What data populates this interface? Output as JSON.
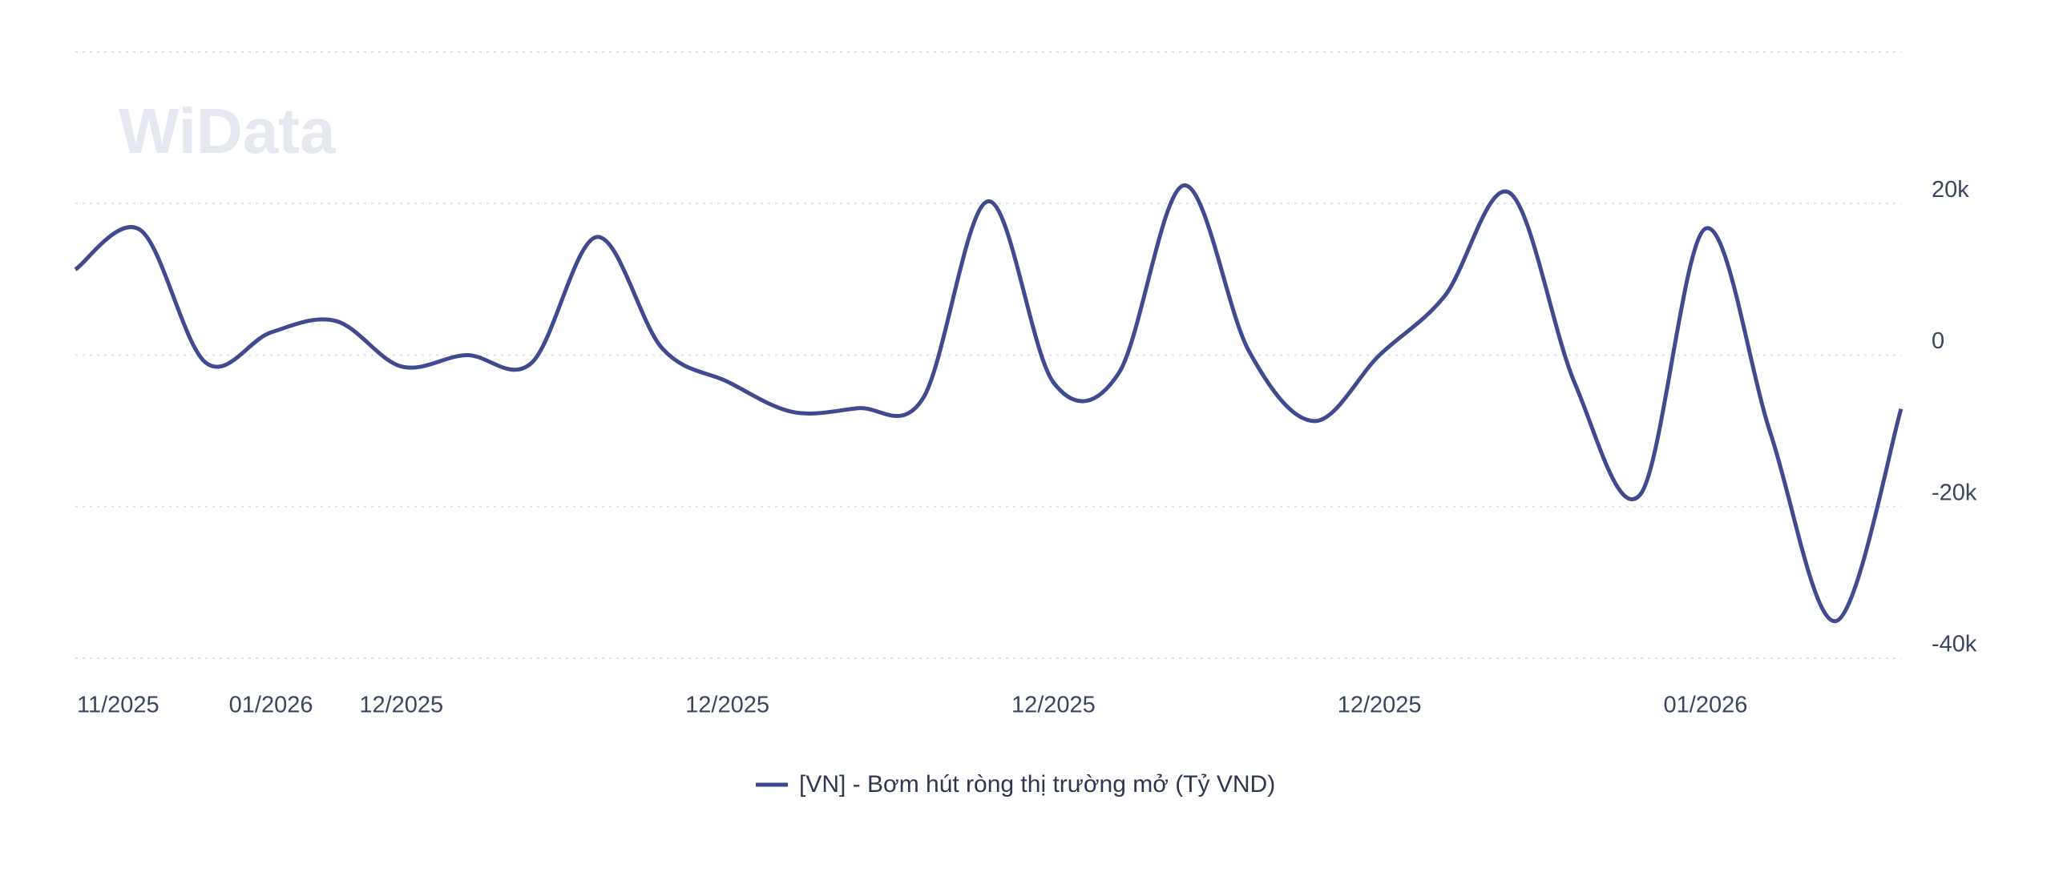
{
  "chart_data": {
    "type": "line",
    "watermark": "WiData",
    "categories": [
      "11/2025",
      null,
      null,
      "01/2026",
      null,
      "12/2025",
      null,
      null,
      null,
      null,
      "12/2025",
      null,
      null,
      null,
      null,
      "12/2025",
      null,
      null,
      null,
      null,
      "12/2025",
      null,
      null,
      null,
      null,
      "01/2026",
      null,
      null,
      null
    ],
    "series": [
      {
        "name": "[VN] - Bơm hút ròng thị trường mở (Tỷ VND)",
        "color": "#3f4a8f",
        "values": [
          11300,
          16500,
          -1000,
          3000,
          4500,
          -1500,
          0,
          -1000,
          15600,
          900,
          -3500,
          -7500,
          -7000,
          -5700,
          20300,
          -3600,
          -2400,
          22400,
          500,
          -8700,
          0,
          7800,
          21400,
          -3800,
          -18400,
          16700,
          -10400,
          -35100,
          -7100
        ]
      }
    ],
    "ylim": [
      -40000,
      40000
    ],
    "yticks": [
      {
        "value": -40000,
        "label": "-40k"
      },
      {
        "value": -20000,
        "label": "-20k"
      },
      {
        "value": 0,
        "label": "0"
      },
      {
        "value": 20000,
        "label": "20k"
      }
    ],
    "grid": true
  }
}
